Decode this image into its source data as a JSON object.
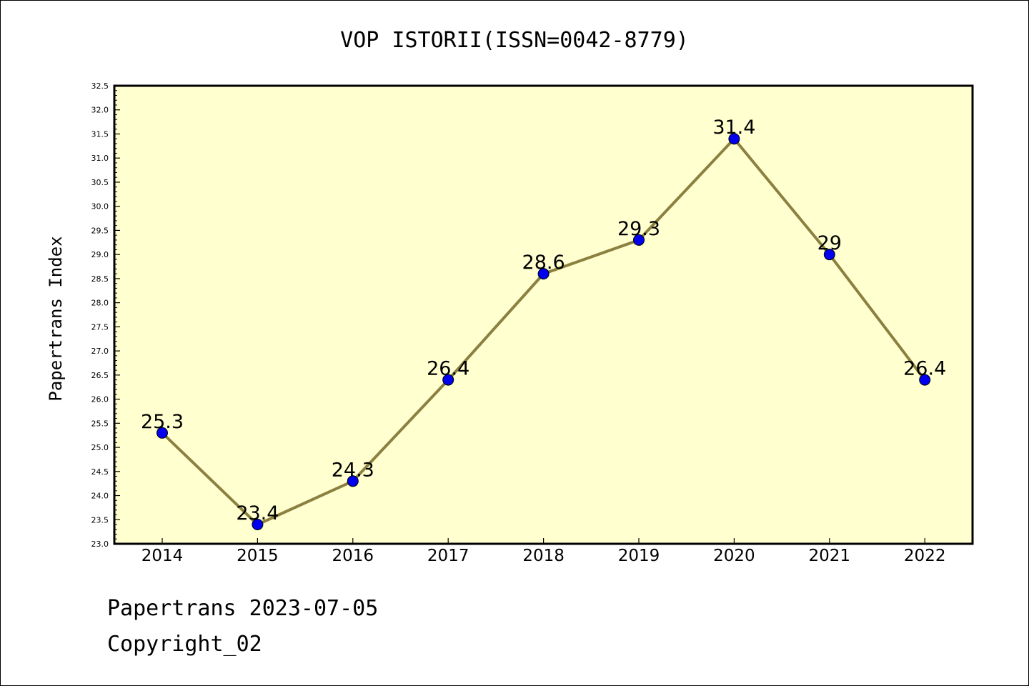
{
  "chart_data": {
    "type": "line",
    "title": "VOP ISTORII(ISSN=0042-8779)",
    "ylabel": "Papertrans Index",
    "xlabel": "",
    "x": [
      "2014",
      "2015",
      "2016",
      "2017",
      "2018",
      "2019",
      "2020",
      "2021",
      "2022"
    ],
    "series": [
      {
        "values": [
          25.3,
          23.4,
          24.3,
          26.4,
          28.6,
          29.3,
          31.4,
          29,
          26.4
        ],
        "labels": [
          "25.3",
          "23.4",
          "24.3",
          "26.4",
          "28.6",
          "29.3",
          "31.4",
          "29",
          "26.4"
        ]
      }
    ],
    "ylim": [
      23.0,
      32.5
    ],
    "yticks": [
      "23.0",
      "23.5",
      "24.0",
      "24.5",
      "25.0",
      "25.5",
      "26.0",
      "26.5",
      "27.0",
      "27.5",
      "28.0",
      "28.5",
      "29.0",
      "29.5",
      "30.0",
      "30.5",
      "31.0",
      "31.5",
      "32.0",
      "32.5"
    ],
    "grid": false,
    "colors": {
      "plot_background": "#ffffd0",
      "line": "#8b8040",
      "marker": "#0000ee"
    }
  },
  "footer": {
    "line1": "Papertrans 2023-07-05",
    "line2": "Copyright_02"
  }
}
